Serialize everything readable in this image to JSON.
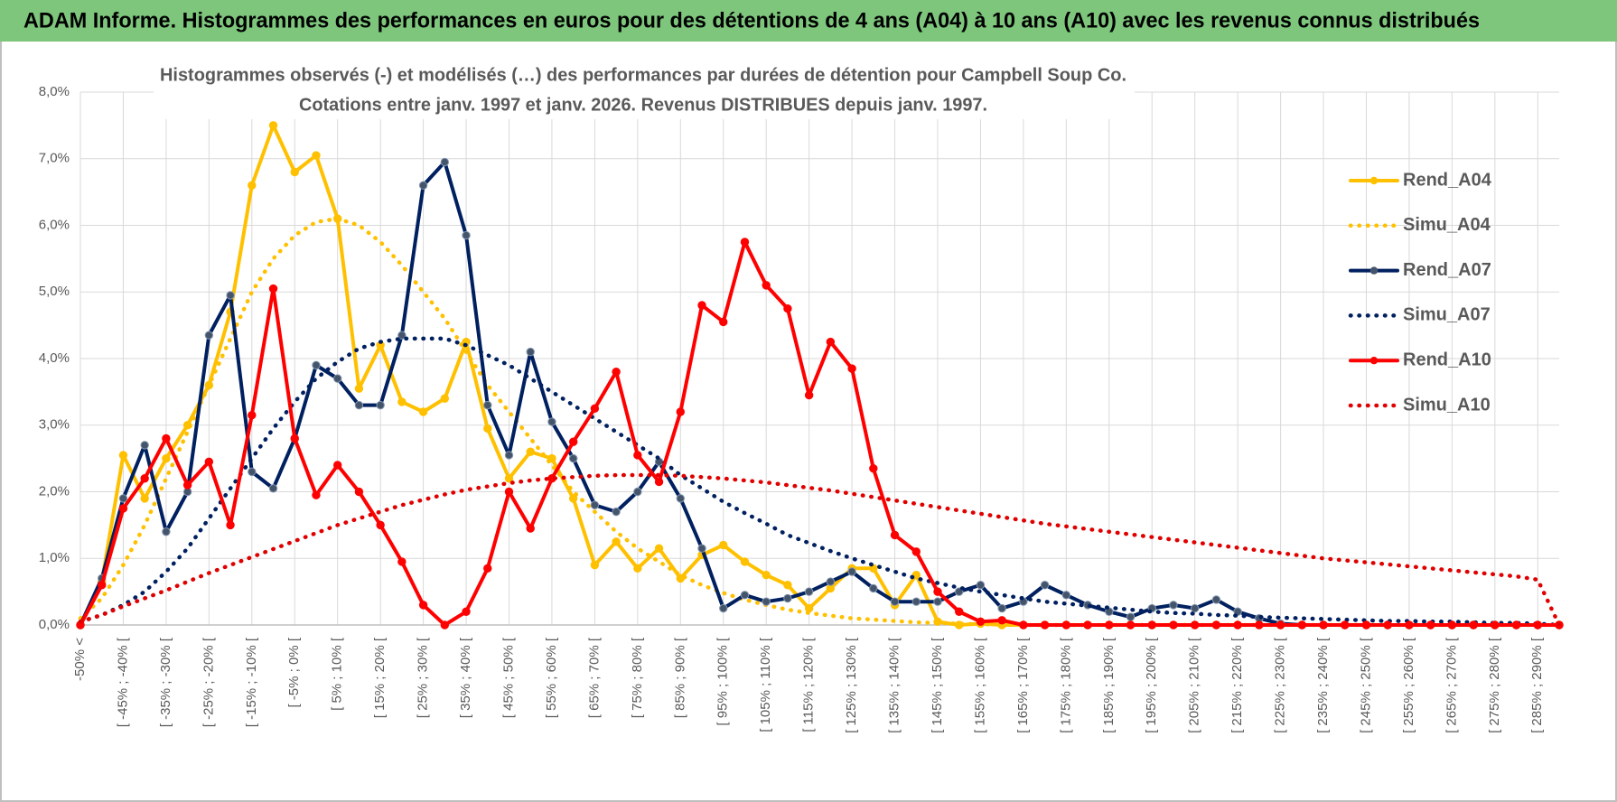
{
  "header": {
    "title": "ADAM Informe. Histogrammes des performances en euros pour des détentions de 4 ans (A04) à 10 ans (A10) avec les revenus connus distribués"
  },
  "chart_data": {
    "type": "line",
    "title": "Histogrammes observés (-) et modélisés (…) des performances par durées de détention pour Campbell Soup Co.",
    "subtitle": "Cotations entre janv. 1997 et janv. 2026. Revenus DISTRIBUES depuis janv. 1997.",
    "categories": [
      "-50% <",
      null,
      "[ -45% ; -40% [",
      null,
      "[ -35% ; -30% [",
      null,
      "[ -25% ; -20% [",
      null,
      "[ -15% ; -10% [",
      null,
      "[ -5% ; 0% [",
      null,
      "[ 5% ; 10% [",
      null,
      "[ 15% ; 20% [",
      null,
      "[ 25% ; 30% [",
      null,
      "[ 35% ; 40% [",
      null,
      "[ 45% ; 50% [",
      null,
      "[ 55% ; 60% [",
      null,
      "[ 65% ; 70% [",
      null,
      "[ 75% ; 80% [",
      null,
      "[ 85% ; 90% [",
      null,
      "[ 95% ; 100% [",
      null,
      "[ 105% ; 110% [",
      null,
      "[ 115% ; 120% [",
      null,
      "[ 125% ; 130% [",
      null,
      "[ 135% ; 140% [",
      null,
      "[ 145% ; 150% [",
      null,
      "[ 155% ; 160% [",
      null,
      "[ 165% ; 170% [",
      null,
      "[ 175% ; 180% [",
      null,
      "[ 185% ; 190% [",
      null,
      "[ 195% ; 200% [",
      null,
      "[ 205% ; 210% [",
      null,
      "[ 215% ; 220% [",
      null,
      "[ 225% ; 230% [",
      null,
      "[ 235% ; 240% [",
      null,
      "[ 245% ; 250% [",
      null,
      "[ 255% ; 260% [",
      null,
      "[ 265% ; 270% [",
      null,
      "[ 275% ; 280% [",
      null,
      "[ 285% ; 290% [",
      null
    ],
    "series": [
      {
        "name": "Rend_A04",
        "color": "#FFC000",
        "line_style": "solid",
        "markers": true,
        "values": [
          0,
          0.65,
          2.55,
          1.9,
          2.5,
          3.0,
          3.6,
          4.7,
          6.6,
          7.5,
          6.8,
          7.05,
          6.1,
          3.55,
          4.2,
          3.35,
          3.2,
          3.4,
          4.25,
          2.95,
          2.2,
          2.6,
          2.5,
          1.9,
          0.9,
          1.25,
          0.85,
          1.15,
          0.7,
          1.05,
          1.2,
          0.95,
          0.75,
          0.6,
          0.25,
          0.55,
          0.85,
          0.85,
          0.3,
          0.75,
          0.05,
          0,
          0.02,
          0,
          0,
          0,
          0,
          0,
          0,
          0,
          0,
          0,
          0,
          0,
          0,
          0,
          0,
          0,
          0,
          0,
          0,
          0,
          0,
          0,
          0,
          0,
          0,
          0,
          0,
          0
        ]
      },
      {
        "name": "Simu_A04",
        "color": "#FFC000",
        "line_style": "dotted",
        "markers": false,
        "values": [
          0.1,
          0.4,
          0.9,
          1.5,
          2.2,
          2.9,
          3.6,
          4.3,
          5.0,
          5.5,
          5.85,
          6.05,
          6.1,
          6.0,
          5.75,
          5.4,
          5.0,
          4.6,
          4.1,
          3.6,
          3.2,
          2.8,
          2.4,
          2.0,
          1.7,
          1.4,
          1.15,
          0.95,
          0.75,
          0.6,
          0.48,
          0.38,
          0.3,
          0.23,
          0.18,
          0.14,
          0.1,
          0.08,
          0.06,
          0.04,
          0.03,
          0.02,
          0.01,
          0.01,
          0,
          0,
          0,
          0,
          0,
          0,
          0,
          0,
          0,
          0,
          0,
          0,
          0,
          0,
          0,
          0,
          0,
          0,
          0,
          0,
          0,
          0,
          0,
          0,
          0,
          0
        ]
      },
      {
        "name": "Rend_A07",
        "color": "#002060",
        "line_style": "solid",
        "markers": true,
        "values": [
          0,
          0.7,
          1.9,
          2.7,
          1.4,
          2.0,
          4.35,
          4.95,
          2.3,
          2.05,
          2.8,
          3.9,
          3.7,
          3.3,
          3.3,
          4.35,
          6.6,
          6.95,
          5.85,
          3.3,
          2.55,
          4.1,
          3.05,
          2.5,
          1.8,
          1.7,
          2.0,
          2.45,
          1.9,
          1.15,
          0.25,
          0.45,
          0.35,
          0.4,
          0.5,
          0.65,
          0.8,
          0.55,
          0.35,
          0.35,
          0.35,
          0.5,
          0.6,
          0.25,
          0.35,
          0.6,
          0.45,
          0.3,
          0.2,
          0.12,
          0.25,
          0.3,
          0.25,
          0.38,
          0.2,
          0.1,
          0.02,
          0,
          0,
          0,
          0,
          0,
          0,
          0,
          0,
          0,
          0,
          0,
          0,
          0
        ]
      },
      {
        "name": "Simu_A07",
        "color": "#002060",
        "line_style": "dotted",
        "markers": false,
        "values": [
          0.05,
          0.15,
          0.3,
          0.5,
          0.8,
          1.15,
          1.6,
          2.05,
          2.5,
          2.95,
          3.35,
          3.7,
          3.95,
          4.15,
          4.25,
          4.3,
          4.3,
          4.3,
          4.2,
          4.05,
          3.9,
          3.7,
          3.5,
          3.3,
          3.1,
          2.9,
          2.7,
          2.5,
          2.25,
          2.05,
          1.85,
          1.68,
          1.52,
          1.35,
          1.23,
          1.11,
          1.0,
          0.9,
          0.8,
          0.7,
          0.63,
          0.56,
          0.5,
          0.45,
          0.4,
          0.35,
          0.32,
          0.29,
          0.26,
          0.23,
          0.2,
          0.18,
          0.17,
          0.15,
          0.14,
          0.12,
          0.11,
          0.1,
          0.09,
          0.08,
          0.07,
          0.06,
          0.06,
          0.05,
          0.05,
          0.04,
          0.03,
          0.03,
          0.02,
          0
        ]
      },
      {
        "name": "Rend_A10",
        "color": "#FF0000",
        "line_style": "solid",
        "markers": true,
        "values": [
          0,
          0.6,
          1.75,
          2.2,
          2.8,
          2.1,
          2.45,
          1.5,
          3.15,
          5.05,
          2.8,
          1.95,
          2.4,
          2.0,
          1.5,
          0.95,
          0.3,
          0,
          0.2,
          0.85,
          2.0,
          1.45,
          2.2,
          2.75,
          3.25,
          3.8,
          2.55,
          2.15,
          3.2,
          4.8,
          4.55,
          5.75,
          5.1,
          4.75,
          3.45,
          4.25,
          3.85,
          2.35,
          1.35,
          1.1,
          0.5,
          0.2,
          0.05,
          0.07,
          0,
          0,
          0,
          0,
          0,
          0,
          0,
          0,
          0,
          0,
          0,
          0,
          0,
          0,
          0,
          0,
          0,
          0,
          0,
          0,
          0,
          0,
          0,
          0,
          0,
          0
        ]
      },
      {
        "name": "Simu_A10",
        "color": "#E00000",
        "line_style": "dotted",
        "markers": false,
        "values": [
          0.05,
          0.15,
          0.28,
          0.4,
          0.52,
          0.65,
          0.78,
          0.9,
          1.02,
          1.14,
          1.26,
          1.38,
          1.5,
          1.6,
          1.7,
          1.8,
          1.88,
          1.96,
          2.03,
          2.08,
          2.13,
          2.17,
          2.2,
          2.22,
          2.24,
          2.25,
          2.25,
          2.25,
          2.24,
          2.22,
          2.2,
          2.17,
          2.14,
          2.1,
          2.06,
          2.02,
          1.97,
          1.92,
          1.87,
          1.82,
          1.77,
          1.72,
          1.67,
          1.62,
          1.57,
          1.52,
          1.48,
          1.44,
          1.4,
          1.36,
          1.32,
          1.28,
          1.24,
          1.2,
          1.16,
          1.12,
          1.08,
          1.04,
          1.0,
          0.97,
          0.94,
          0.91,
          0.88,
          0.85,
          0.82,
          0.79,
          0.76,
          0.73,
          0.68,
          0
        ]
      }
    ],
    "ylim": [
      0,
      8
    ],
    "yticks": [
      {
        "value": 0,
        "label": "0,0%"
      },
      {
        "value": 1,
        "label": "1,0%"
      },
      {
        "value": 2,
        "label": "2,0%"
      },
      {
        "value": 3,
        "label": "3,0%"
      },
      {
        "value": 4,
        "label": "4,0%"
      },
      {
        "value": 5,
        "label": "5,0%"
      },
      {
        "value": 6,
        "label": "6,0%"
      },
      {
        "value": 7,
        "label": "7,0%"
      },
      {
        "value": 8,
        "label": "8,0%"
      }
    ],
    "grid": true,
    "legend": "right"
  }
}
